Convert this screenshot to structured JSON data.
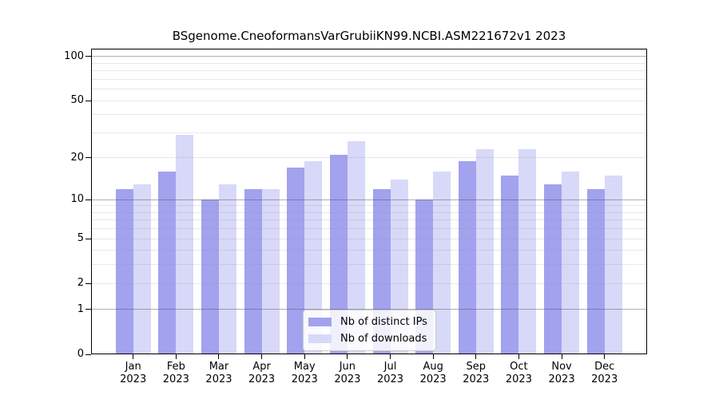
{
  "page": {
    "background": "#ffffff"
  },
  "chart_data": {
    "type": "bar",
    "title": "BSgenome.CneoformansVarGrubiiKN99.NCBI.ASM221672v1 2023",
    "categories": [
      "Jan",
      "Feb",
      "Mar",
      "Apr",
      "May",
      "Jun",
      "Jul",
      "Aug",
      "Sep",
      "Oct",
      "Nov",
      "Dec"
    ],
    "x_year_label": "2023",
    "series": [
      {
        "name": "Nb of distinct IPs",
        "color": "#a2a2ef",
        "values": [
          12,
          16,
          10,
          12,
          17,
          21,
          12,
          10,
          19,
          15,
          13,
          12
        ]
      },
      {
        "name": "Nb of downloads",
        "color": "#d8d8f8",
        "values": [
          13,
          29,
          13,
          12,
          19,
          26,
          14,
          16,
          23,
          23,
          16,
          15
        ]
      }
    ],
    "y_axis": {
      "scale": "log10(value+1)",
      "tick_labels": [
        100,
        50,
        20,
        10,
        5,
        2,
        1,
        0
      ],
      "major_gridlines": [
        1,
        10,
        100
      ],
      "minor_gridlines": [
        2,
        3,
        4,
        5,
        6,
        7,
        8,
        9,
        20,
        30,
        40,
        50,
        60,
        70,
        80,
        90
      ],
      "ylim": [
        0,
        113
      ]
    },
    "legend": {
      "position": "bottom-center"
    },
    "grid": true
  }
}
